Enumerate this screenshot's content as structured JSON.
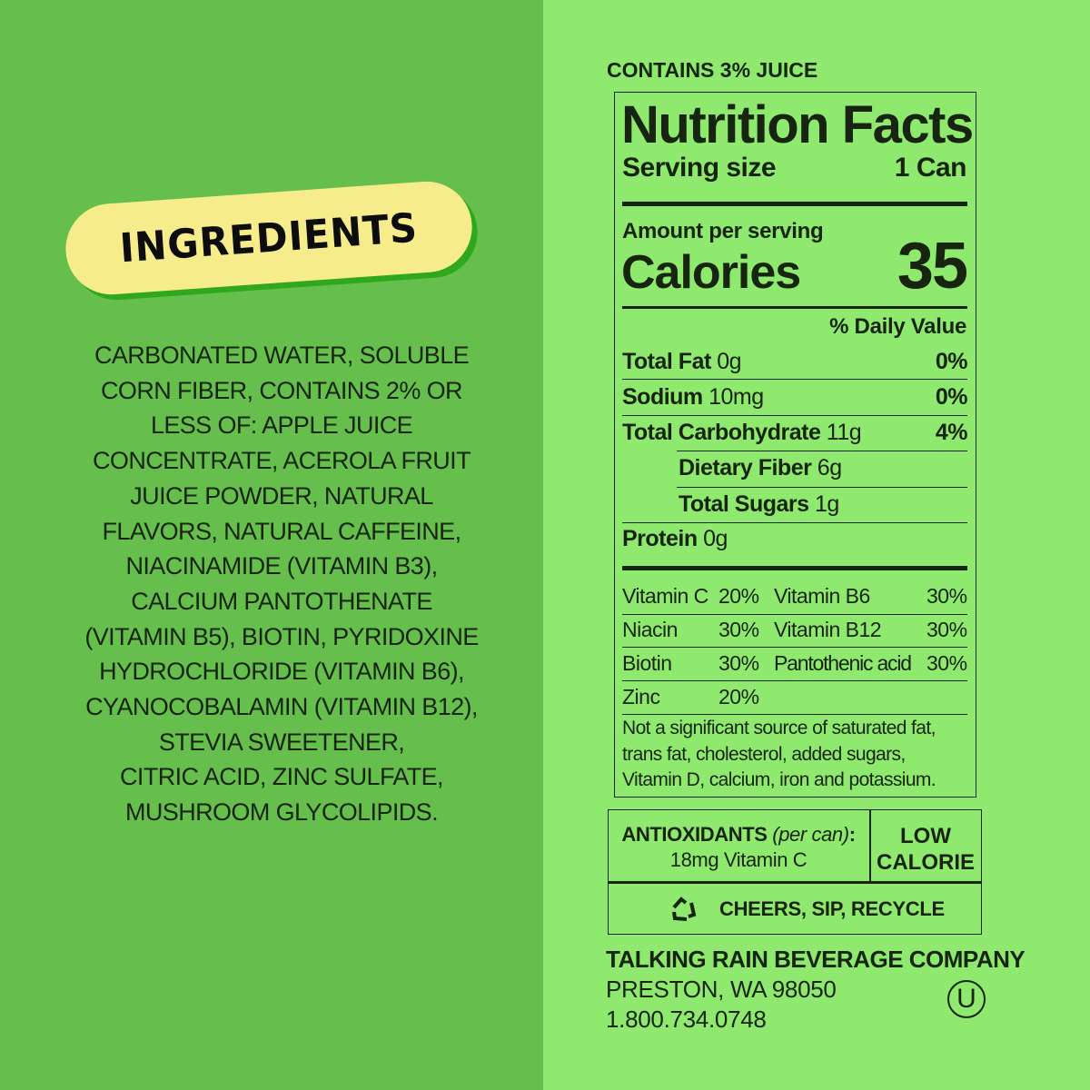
{
  "ingredients": {
    "title": "INGREDIENTS",
    "lines": [
      "CARBONATED WATER, SOLUBLE",
      "CORN FIBER, CONTAINS 2% OR",
      "LESS OF: APPLE JUICE",
      "CONCENTRATE, ACEROLA FRUIT",
      "JUICE POWDER, NATURAL",
      "FLAVORS, NATURAL CAFFEINE,",
      "NIACINAMIDE (VITAMIN B3),",
      "CALCIUM PANTOTHENATE",
      "(VITAMIN B5), BIOTIN, PYRIDOXINE",
      "HYDROCHLORIDE (VITAMIN B6),",
      "CYANOCOBALAMIN (VITAMIN B12),",
      "STEVIA SWEETENER,",
      "CITRIC ACID, ZINC SULFATE,",
      "MUSHROOM GLYCOLIPIDS."
    ]
  },
  "juice": "CONTAINS 3% JUICE",
  "facts": {
    "title": "Nutrition Facts",
    "serving_label": "Serving size",
    "serving_value": "1 Can",
    "amount": "Amount per serving",
    "calories_label": "Calories",
    "calories": "35",
    "dv": "% Daily Value",
    "rows": [
      {
        "name": "Total Fat",
        "amt": "0g",
        "pct": "0%"
      },
      {
        "name": "Sodium",
        "amt": "10mg",
        "pct": "0%"
      },
      {
        "name": "Total Carbohydrate",
        "amt": "11g",
        "pct": "4%"
      },
      {
        "name": "Dietary Fiber",
        "amt": "6g",
        "pct": ""
      },
      {
        "name": "Total Sugars",
        "amt": "1g",
        "pct": ""
      },
      {
        "name": "Protein",
        "amt": "0g",
        "pct": ""
      }
    ],
    "vitamins": [
      {
        "name": "Vitamin C",
        "pct": "20%"
      },
      {
        "name": "Vitamin B6",
        "pct": "30%"
      },
      {
        "name": "Niacin",
        "pct": "30%"
      },
      {
        "name": "Vitamin B12",
        "pct": "30%"
      },
      {
        "name": "Biotin",
        "pct": "30%"
      },
      {
        "name": "Pantothenic acid",
        "pct": "30%"
      },
      {
        "name": "Zinc",
        "pct": "20%"
      }
    ],
    "footnote": [
      "Not a significant source of saturated fat,",
      "trans fat, cholesterol, added sugars,",
      "Vitamin D, calcium, iron and potassium."
    ]
  },
  "antioxidants": {
    "label": "ANTIOXIDANTS",
    "note": "(per can)",
    "colon": ":",
    "value": "18mg Vitamin C"
  },
  "low_calorie": [
    "LOW",
    "CALORIE"
  ],
  "recycle": "CHEERS, SIP, RECYCLE",
  "company": {
    "name": "TALKING RAIN BEVERAGE COMPANY",
    "address": "PRESTON, WA 98050",
    "phone": "1.800.734.0748",
    "kosher": "U"
  },
  "colors": {
    "left_bg": "#66bf4c",
    "right_bg": "#8fe96f",
    "pill": "#f6ec8b",
    "text": "#17240f"
  }
}
